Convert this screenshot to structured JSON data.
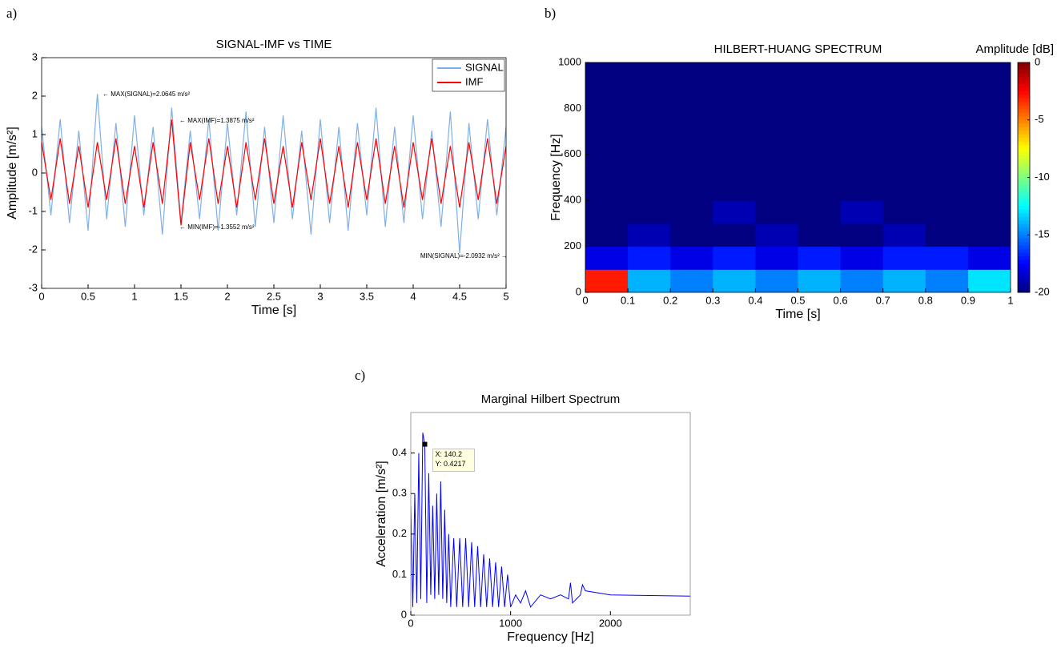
{
  "chart_data": [
    {
      "type": "line",
      "panel_label": "a)",
      "title": "SIGNAL-IMF vs TIME",
      "x_label": "Time [s]",
      "y_label": "Amplitude [m/s²]",
      "x": [
        0,
        0.1,
        0.2,
        0.3,
        0.4,
        0.5,
        0.6,
        0.7,
        0.8,
        0.9,
        1,
        1.1,
        1.2,
        1.3,
        1.4,
        1.5,
        1.6,
        1.7,
        1.8,
        1.9,
        2,
        2.1,
        2.2,
        2.3,
        2.4,
        2.5,
        2.6,
        2.7,
        2.8,
        2.9,
        3,
        3.1,
        3.2,
        3.3,
        3.4,
        3.5,
        3.6,
        3.7,
        3.8,
        3.9,
        4,
        4.1,
        4.2,
        4.3,
        4.4,
        4.5,
        4.6,
        4.7,
        4.8,
        4.9,
        5
      ],
      "series": [
        {
          "name": "SIGNAL",
          "color": "#7fb0e8",
          "values": [
            1.2,
            -1.1,
            1.4,
            -1.3,
            1.1,
            -1.5,
            2.06,
            -1.2,
            1.3,
            -1.4,
            1.5,
            -1.1,
            1.2,
            -1.6,
            1.7,
            -1.3,
            1.1,
            -1.2,
            1.4,
            -1.5,
            1.3,
            -1.1,
            1.6,
            -1.4,
            1.2,
            -1.3,
            1.5,
            -1.2,
            1.1,
            -1.6,
            1.4,
            -1.3,
            1.2,
            -1.5,
            1.3,
            -1.1,
            1.7,
            -1.4,
            1.2,
            -1.3,
            1.5,
            -1.2,
            1.1,
            -1.4,
            1.6,
            -2.09,
            1.3,
            -1.2,
            1.4,
            -1.1,
            1.2
          ]
        },
        {
          "name": "IMF",
          "color": "#ff0000",
          "values": [
            0.8,
            -0.7,
            0.9,
            -0.8,
            0.7,
            -0.9,
            0.8,
            -0.7,
            0.9,
            -0.8,
            0.7,
            -0.9,
            0.8,
            -0.8,
            1.39,
            -1.36,
            0.8,
            -0.7,
            0.9,
            -0.8,
            0.7,
            -0.9,
            0.8,
            -0.7,
            0.9,
            -0.8,
            0.7,
            -0.9,
            0.8,
            -0.7,
            0.9,
            -0.8,
            0.7,
            -0.9,
            0.8,
            -0.7,
            0.9,
            -0.8,
            0.7,
            -0.9,
            0.8,
            -0.7,
            0.9,
            -0.8,
            0.7,
            -0.9,
            0.8,
            -0.7,
            0.9,
            -0.8,
            0.7
          ]
        }
      ],
      "xlim": [
        0,
        5
      ],
      "xticks": [
        0,
        0.5,
        1,
        1.5,
        2,
        2.5,
        3,
        3.5,
        4,
        4.5,
        5
      ],
      "ylim": [
        -3,
        3
      ],
      "yticks": [
        -3,
        -2,
        -1,
        0,
        1,
        2,
        3
      ],
      "legend": "upper right",
      "annotations": [
        "← MAX(SIGNAL)=2.0645 m/s²",
        "← MAX(IMF)=1.3875 m/s²",
        "← MIN(IMF)=-1.3552 m/s²",
        "MIN(SIGNAL)=-2.0932 m/s² →"
      ]
    },
    {
      "type": "heatmap",
      "panel_label": "b)",
      "title": "HILBERT-HUANG SPECTRUM",
      "x_label": "Time [s]",
      "y_label": "Frequency [Hz]",
      "colorbar_label": "Amplitude [dB]",
      "xbins": [
        0,
        0.1,
        0.2,
        0.3,
        0.4,
        0.5,
        0.6,
        0.7,
        0.8,
        0.9,
        1
      ],
      "ybins": [
        0,
        100,
        200,
        300,
        400,
        500,
        600,
        700,
        800,
        900,
        1000
      ],
      "z": [
        [
          -3,
          -14,
          -15,
          -14,
          -15,
          -14,
          -15,
          -14,
          -15,
          -13
        ],
        [
          -18,
          -17,
          -18,
          -17,
          -18,
          -17,
          -18,
          -17,
          -17,
          -18
        ],
        [
          -20,
          -19,
          -20,
          -20,
          -19,
          -20,
          -20,
          -19,
          -20,
          -20
        ],
        [
          -20,
          -20,
          -20,
          -19,
          -20,
          -20,
          -19,
          -20,
          -20,
          -20
        ],
        [
          -20,
          -20,
          -20,
          -20,
          -20,
          -20,
          -20,
          -20,
          -20,
          -20
        ],
        [
          -20,
          -20,
          -20,
          -20,
          -20,
          -20,
          -20,
          -20,
          -20,
          -20
        ],
        [
          -20,
          -20,
          -20,
          -20,
          -20,
          -20,
          -20,
          -20,
          -20,
          -20
        ],
        [
          -20,
          -20,
          -20,
          -20,
          -20,
          -20,
          -20,
          -20,
          -20,
          -20
        ],
        [
          -20,
          -20,
          -20,
          -20,
          -20,
          -20,
          -20,
          -20,
          -20,
          -20
        ],
        [
          -20,
          -20,
          -20,
          -20,
          -20,
          -20,
          -20,
          -20,
          -20,
          -20
        ]
      ],
      "xlim": [
        0,
        1
      ],
      "xticks": [
        0,
        0.1,
        0.2,
        0.3,
        0.4,
        0.5,
        0.6,
        0.7,
        0.8,
        0.9,
        1
      ],
      "ylim": [
        0,
        1000
      ],
      "yticks": [
        0,
        200,
        400,
        600,
        800,
        1000
      ],
      "clim": [
        -20,
        0
      ],
      "cticks": [
        0,
        -5,
        -10,
        -15,
        -20
      ],
      "colormap": "jet"
    },
    {
      "type": "line",
      "panel_label": "c)",
      "title": "Marginal Hilbert Spectrum",
      "x_label": "Frequency [Hz]",
      "y_label": "Acceleration [m/s²]",
      "x": [
        0,
        20,
        40,
        60,
        80,
        100,
        120,
        140.2,
        160,
        180,
        200,
        220,
        240,
        260,
        280,
        300,
        320,
        340,
        360,
        380,
        400,
        430,
        460,
        490,
        520,
        550,
        580,
        610,
        640,
        670,
        700,
        730,
        760,
        790,
        820,
        850,
        880,
        910,
        940,
        970,
        1000,
        1050,
        1100,
        1150,
        1200,
        1300,
        1400,
        1500,
        1580,
        1600,
        1620,
        1700,
        1720,
        1750,
        2000,
        2800
      ],
      "series": [
        {
          "name": "Marginal Hilbert Spectrum",
          "color": "#0000ff",
          "values": [
            0.27,
            0.02,
            0.3,
            0.03,
            0.4,
            0.04,
            0.45,
            0.4217,
            0.03,
            0.35,
            0.05,
            0.27,
            0.04,
            0.3,
            0.05,
            0.33,
            0.04,
            0.26,
            0.03,
            0.2,
            0.02,
            0.19,
            0.02,
            0.19,
            0.02,
            0.19,
            0.02,
            0.18,
            0.02,
            0.17,
            0.02,
            0.15,
            0.02,
            0.14,
            0.02,
            0.13,
            0.02,
            0.12,
            0.02,
            0.1,
            0.02,
            0.05,
            0.03,
            0.06,
            0.02,
            0.05,
            0.04,
            0.05,
            0.04,
            0.08,
            0.03,
            0.05,
            0.075,
            0.06,
            0.05,
            0.047
          ]
        }
      ],
      "xlim": [
        0,
        2800
      ],
      "xticks": [
        0,
        1000,
        2000
      ],
      "ylim": [
        0,
        0.5
      ],
      "yticks": [
        0,
        0.1,
        0.2,
        0.3,
        0.4
      ],
      "annotations": [
        "X: 140.2",
        "Y: 0.4217"
      ]
    }
  ]
}
